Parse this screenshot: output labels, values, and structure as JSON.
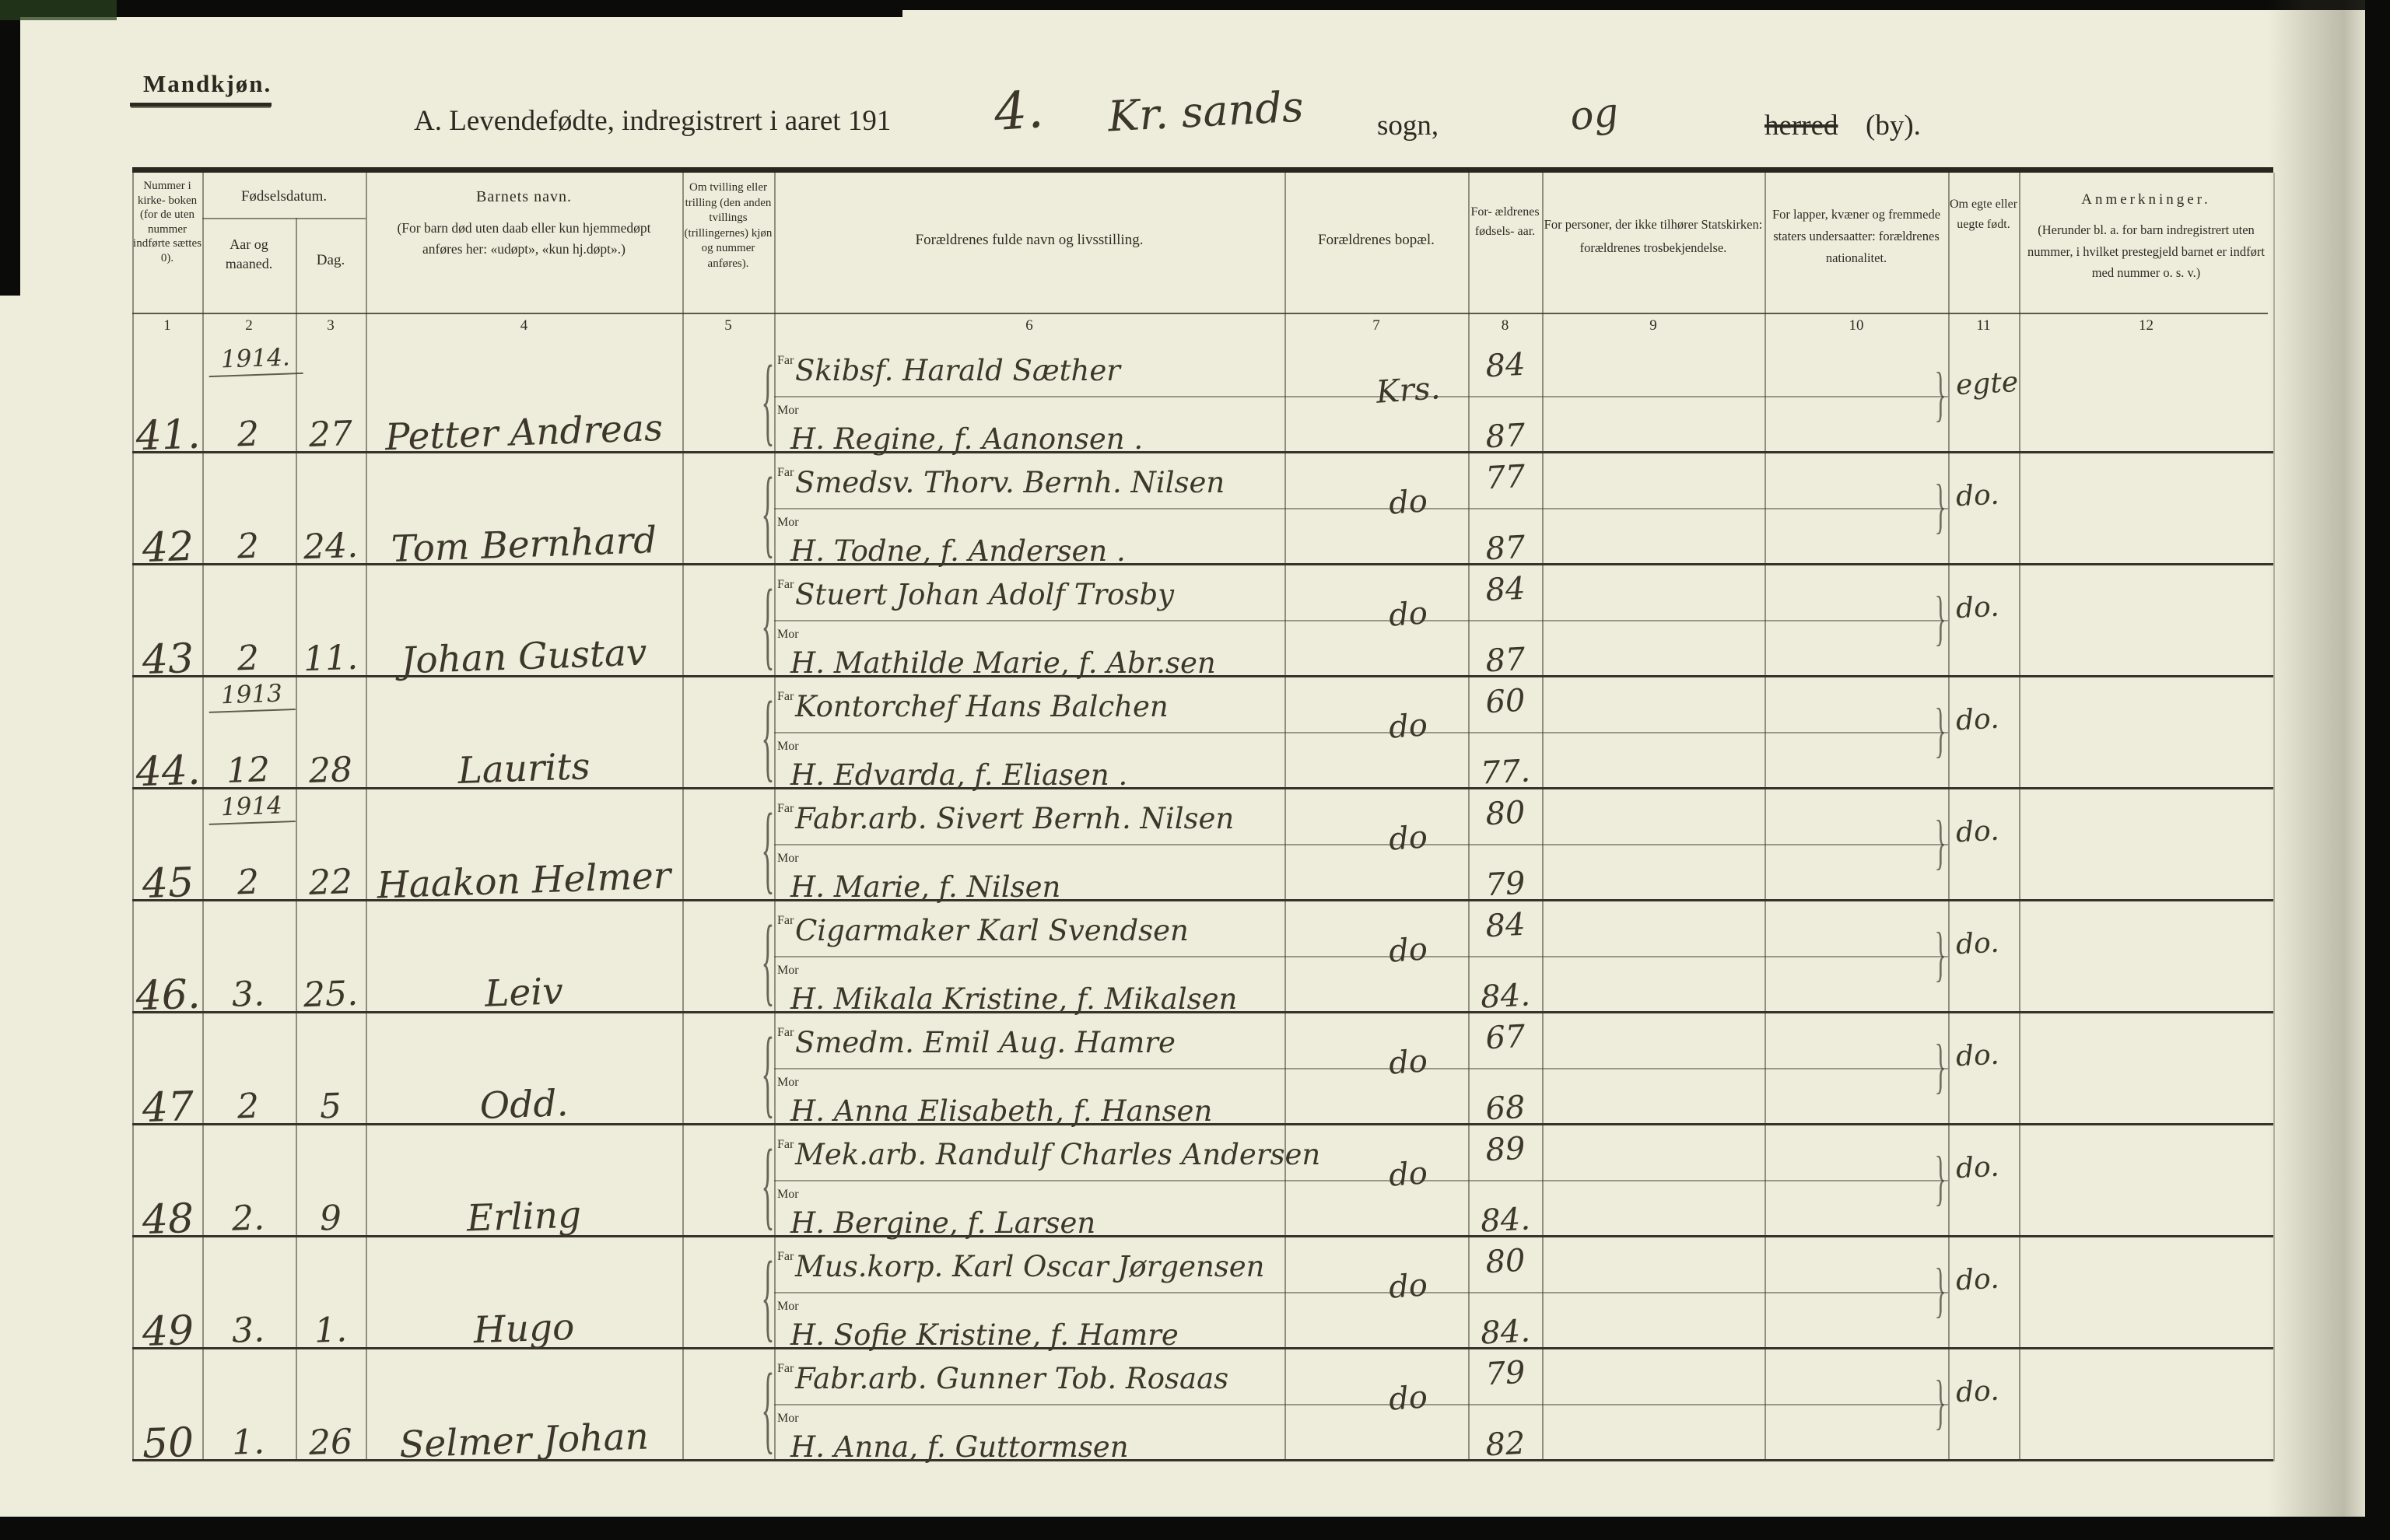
{
  "masthead": {
    "label": "Mandkjøn."
  },
  "title": {
    "printed_main": "A.  Levendefødte, indregistrert i aaret 191",
    "year_handwritten": "4.",
    "place_handwritten": "Kr. sands",
    "sogn_label": "sogn,",
    "og_handwritten": "og",
    "herred_label": "herred",
    "by_label": "(by)."
  },
  "labels": {
    "far": "Far",
    "mor": "Mor"
  },
  "table": {
    "headers": {
      "col1": "Nummer i kirke- boken (for de uten nummer indførte sættes 0).",
      "fodselsdatum": "Fødselsdatum.",
      "col2": "Aar og maaned.",
      "col3": "Dag.",
      "col4_title": "Barnets navn.",
      "col4_body": "(For barn død uten daab eller kun hjemmedøpt anføres her: «udøpt», «kun hj.døpt».)",
      "col5": "Om tvilling eller trilling (den anden tvillings (trillingernes) kjøn og nummer anføres).",
      "col6": "Forældrenes fulde navn og livsstilling.",
      "col7": "Forældrenes bopæl.",
      "col8": "For- ældrenes fødsels- aar.",
      "col9": "For personer, der ikke tilhører Statskirken: forældrenes trosbekjendelse.",
      "col10": "For lapper, kvæner og fremmede staters undersaatter: forældrenes nationalitet.",
      "col11": "Om egte eller uegte født.",
      "col12_title": "Anmerkninger.",
      "col12_body": "(Herunder bl. a. for barn indregistrert uten nummer, i hvilket prestegjeld barnet er indført med nummer o. s. v.)"
    },
    "column_numbers": [
      "1",
      "2",
      "3",
      "4",
      "5",
      "6",
      "7",
      "8",
      "9",
      "10",
      "11",
      "12"
    ]
  },
  "rows": [
    {
      "nr": "41.",
      "year_note": "1914.",
      "month": "2",
      "day": "27",
      "child_name": "Petter Andreas",
      "far": "Skibsf. Harald Sæther",
      "mor": "H. Regine, f. Aanonsen .",
      "bopel": "Krs.",
      "far_year": "84",
      "mor_year": "87",
      "leg": "egte"
    },
    {
      "nr": "42",
      "month": "2",
      "day": "24.",
      "child_name": "Tom Bernhard",
      "far": "Smedsv. Thorv. Bernh. Nilsen",
      "mor": "H. Todne, f. Andersen .",
      "bopel": "do",
      "far_year": "77",
      "mor_year": "87",
      "leg": "do."
    },
    {
      "nr": "43",
      "month": "2",
      "day": "11.",
      "child_name": "Johan Gustav",
      "far": "Stuert Johan Adolf Trosby",
      "mor": "H. Mathilde Marie, f. Abr.sen",
      "bopel": "do",
      "far_year": "84",
      "mor_year": "87",
      "leg": "do."
    },
    {
      "nr": "44.",
      "year_note": "1913",
      "month": "12",
      "day": "28",
      "child_name": "Laurits",
      "far": "Kontorchef Hans Balchen",
      "mor": "H. Edvarda, f. Eliasen .",
      "bopel": "do",
      "far_year": "60",
      "mor_year": "77.",
      "leg": "do."
    },
    {
      "nr": "45",
      "year_note": "1914",
      "month": "2",
      "day": "22",
      "child_name": "Haakon Helmer",
      "far": "Fabr.arb. Sivert Bernh. Nilsen",
      "mor": "H. Marie, f. Nilsen",
      "bopel": "do",
      "far_year": "80",
      "mor_year": "79",
      "leg": "do."
    },
    {
      "nr": "46.",
      "month": "3.",
      "day": "25.",
      "child_name": "Leiv",
      "far": "Cigarmaker Karl Svendsen",
      "mor": "H. Mikala Kristine, f. Mikalsen",
      "bopel": "do",
      "far_year": "84",
      "mor_year": "84.",
      "leg": "do."
    },
    {
      "nr": "47",
      "month": "2",
      "day": "5",
      "child_name": "Odd.",
      "far": "Smedm. Emil Aug. Hamre",
      "mor": "H. Anna Elisabeth, f. Hansen",
      "bopel": "do",
      "far_year": "67",
      "mor_year": "68",
      "leg": "do."
    },
    {
      "nr": "48",
      "month": "2.",
      "day": "9",
      "child_name": "Erling",
      "far": "Mek.arb. Randulf Charles Andersen",
      "mor": "H. Bergine, f. Larsen",
      "bopel": "do",
      "far_year": "89",
      "mor_year": "84.",
      "leg": "do."
    },
    {
      "nr": "49",
      "month": "3.",
      "day": "1.",
      "child_name": "Hugo",
      "far": "Mus.korp. Karl Oscar Jørgensen",
      "mor": "H. Sofie Kristine, f. Hamre",
      "bopel": "do",
      "far_year": "80",
      "mor_year": "84.",
      "leg": "do."
    },
    {
      "nr": "50",
      "month": "1.",
      "day": "26",
      "child_name": "Selmer Johan",
      "far": "Fabr.arb. Gunner Tob. Rosaas",
      "mor": "H. Anna, f. Guttormsen",
      "bopel": "do",
      "far_year": "79",
      "mor_year": "82",
      "leg": "do."
    }
  ]
}
